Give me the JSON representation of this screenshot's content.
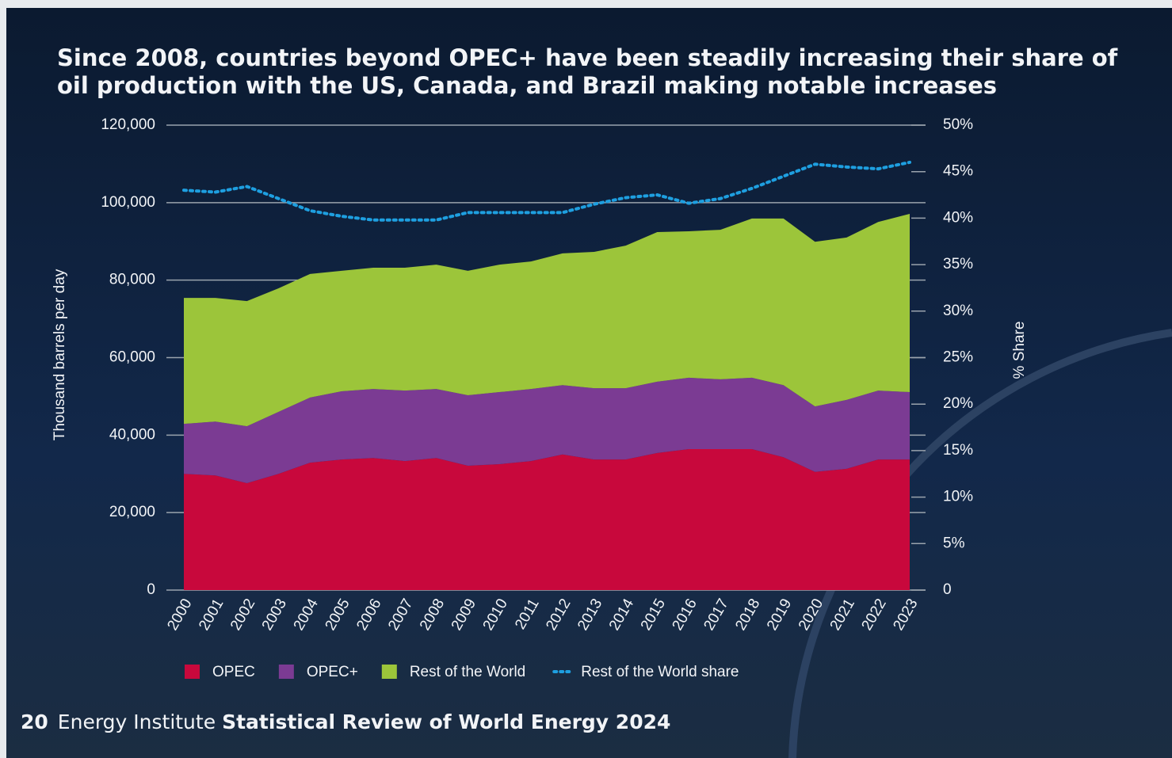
{
  "chart_data": {
    "type": "stacked-area",
    "title": "Since 2008, countries beyond OPEC+ have been steadily increasing their share of oil production with the US, Canada, and Brazil making notable increases",
    "y_label": "Thousand barrels per day",
    "y2_label": "% Share",
    "categories": [
      "2000",
      "2001",
      "2002",
      "2003",
      "2004",
      "2005",
      "2006",
      "2007",
      "2008",
      "2009",
      "2010",
      "2011",
      "2012",
      "2013",
      "2014",
      "2015",
      "2016",
      "2017",
      "2018",
      "2019",
      "2020",
      "2021",
      "2022",
      "2023"
    ],
    "series": [
      {
        "name": "OPEC",
        "color": "#c8083c",
        "values": [
          30000,
          29600,
          27600,
          30000,
          32900,
          33700,
          34100,
          33300,
          34100,
          32100,
          32500,
          33300,
          35000,
          33700,
          33700,
          35400,
          36400,
          36400,
          36400,
          34300,
          30500,
          31300,
          33700,
          33700
        ]
      },
      {
        "name": "OPEC+",
        "color": "#7b3b93",
        "values": [
          12900,
          13900,
          14700,
          16000,
          16800,
          17600,
          17800,
          18200,
          17800,
          18200,
          18600,
          18600,
          17900,
          18400,
          18400,
          18400,
          18400,
          18000,
          18400,
          18600,
          16900,
          17800,
          17800,
          17400
        ]
      },
      {
        "name": "Rest of the World",
        "color": "#9cc53a",
        "values": [
          32500,
          31900,
          32300,
          31900,
          31900,
          31100,
          31300,
          31700,
          32100,
          32100,
          32900,
          32900,
          34000,
          35200,
          36800,
          38600,
          37800,
          38600,
          41100,
          43000,
          42500,
          41900,
          43500,
          46000
        ]
      },
      {
        "name": "Rest of the World share",
        "color": "#1e9fe0",
        "axis": "y2",
        "style": "dotted",
        "values": [
          43.0,
          42.8,
          43.4,
          42.1,
          40.8,
          40.2,
          39.8,
          39.8,
          39.8,
          40.6,
          40.6,
          40.6,
          40.6,
          41.5,
          42.2,
          42.5,
          41.6,
          42.1,
          43.2,
          44.5,
          45.8,
          45.5,
          45.3,
          46.0
        ]
      }
    ],
    "ylim": [
      0,
      120000
    ],
    "yticks": [
      0,
      {
        "value": 20000,
        "label": "20,000"
      },
      {
        "value": 40000,
        "label": "40,000"
      },
      {
        "value": 60000,
        "label": "60,000"
      },
      {
        "value": 80000,
        "label": "80,000"
      },
      {
        "value": 100000,
        "label": "100,000"
      },
      {
        "value": 120000,
        "label": "120,000"
      }
    ],
    "y2lim": [
      0,
      50
    ],
    "y2ticks": [
      0,
      {
        "value": 5,
        "label": "5%"
      },
      {
        "value": 10,
        "label": "10%"
      },
      {
        "value": 15,
        "label": "15%"
      },
      {
        "value": 20,
        "label": "20%"
      },
      {
        "value": 25,
        "label": "25%"
      },
      {
        "value": 30,
        "label": "30%"
      },
      {
        "value": 35,
        "label": "35%"
      },
      {
        "value": 40,
        "label": "40%"
      },
      {
        "value": 45,
        "label": "45%"
      },
      {
        "value": 50,
        "label": "50%"
      }
    ],
    "grid": true,
    "legend": "bottom"
  },
  "footer": {
    "page": "20",
    "publisher": "Energy Institute",
    "title": "Statistical Review of World Energy 2024"
  }
}
